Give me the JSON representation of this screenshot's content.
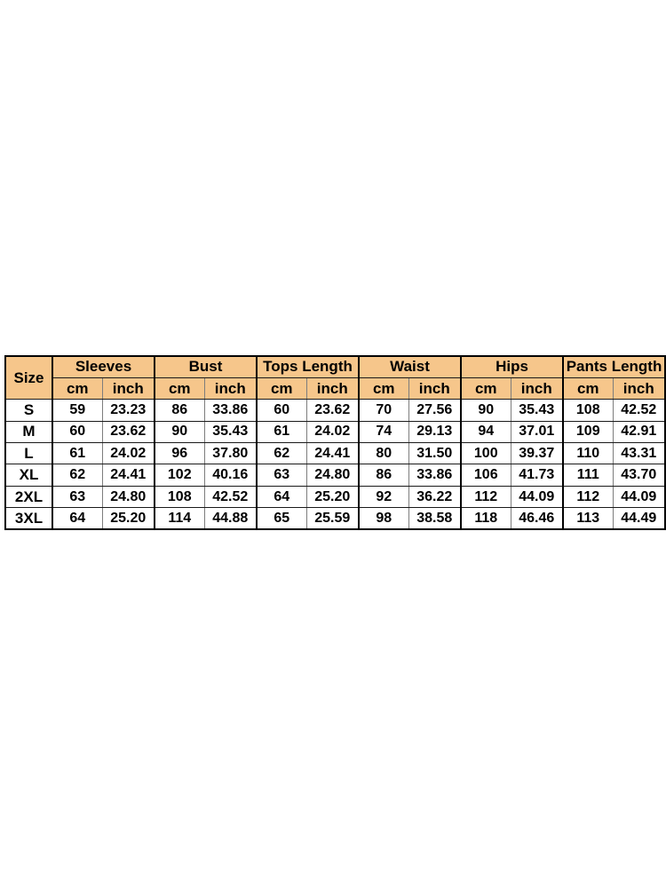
{
  "size_chart": {
    "size_header": "Size",
    "groups": [
      {
        "label": "Sleeves"
      },
      {
        "label": "Bust"
      },
      {
        "label": "Tops Length"
      },
      {
        "label": "Waist"
      },
      {
        "label": "Hips"
      },
      {
        "label": "Pants Length"
      }
    ],
    "units": {
      "cm": "cm",
      "inch": "inch"
    },
    "rows": [
      {
        "size": "S",
        "values": [
          "59",
          "23.23",
          "86",
          "33.86",
          "60",
          "23.62",
          "70",
          "27.56",
          "90",
          "35.43",
          "108",
          "42.52"
        ]
      },
      {
        "size": "M",
        "values": [
          "60",
          "23.62",
          "90",
          "35.43",
          "61",
          "24.02",
          "74",
          "29.13",
          "94",
          "37.01",
          "109",
          "42.91"
        ]
      },
      {
        "size": "L",
        "values": [
          "61",
          "24.02",
          "96",
          "37.80",
          "62",
          "24.41",
          "80",
          "31.50",
          "100",
          "39.37",
          "110",
          "43.31"
        ]
      },
      {
        "size": "XL",
        "values": [
          "62",
          "24.41",
          "102",
          "40.16",
          "63",
          "24.80",
          "86",
          "33.86",
          "106",
          "41.73",
          "111",
          "43.70"
        ]
      },
      {
        "size": "2XL",
        "values": [
          "63",
          "24.80",
          "108",
          "42.52",
          "64",
          "25.20",
          "92",
          "36.22",
          "112",
          "44.09",
          "112",
          "44.09"
        ]
      },
      {
        "size": "3XL",
        "values": [
          "64",
          "25.20",
          "114",
          "44.88",
          "65",
          "25.59",
          "98",
          "38.58",
          "118",
          "46.46",
          "113",
          "44.49"
        ]
      }
    ],
    "colors": {
      "header_bg": "#f6c68b",
      "border": "#000000",
      "inner_divider": "#7d7d7d",
      "text": "#000000",
      "page_bg": "#ffffff"
    }
  }
}
